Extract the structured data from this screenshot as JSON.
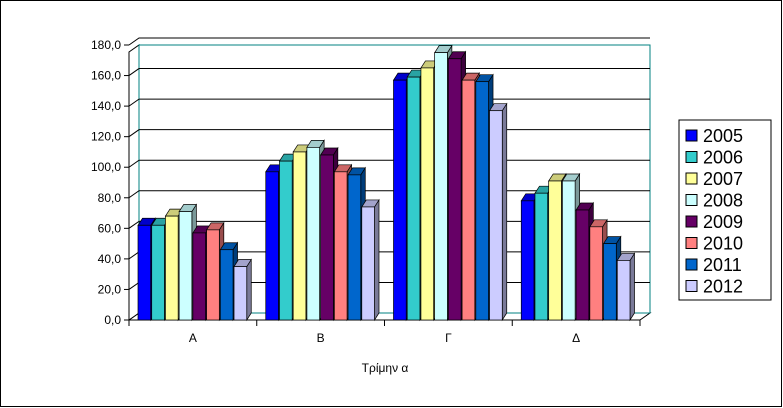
{
  "chart_data": {
    "type": "bar",
    "title": "",
    "xlabel": "Τρίμην α",
    "ylabel": "",
    "ylim": [
      0,
      180
    ],
    "y_ticks": [
      "0,0",
      "20,0",
      "40,0",
      "60,0",
      "80,0",
      "100,0",
      "120,0",
      "140,0",
      "160,0",
      "180,0"
    ],
    "categories": [
      "Α",
      "Β",
      "Γ",
      "Δ"
    ],
    "grid": true,
    "style": "3d-clustered-column",
    "legend_position": "right",
    "series": [
      {
        "name": "2005",
        "color": "#0000ff",
        "values": [
          62,
          97,
          157,
          78
        ]
      },
      {
        "name": "2006",
        "color": "#33cccc",
        "values": [
          62,
          104,
          159,
          83
        ]
      },
      {
        "name": "2007",
        "color": "#ffff99",
        "values": [
          68,
          110,
          165,
          91
        ]
      },
      {
        "name": "2008",
        "color": "#ccffff",
        "values": [
          71,
          113,
          175,
          91
        ]
      },
      {
        "name": "2009",
        "color": "#660066",
        "values": [
          57,
          108,
          171,
          72
        ]
      },
      {
        "name": "2010",
        "color": "#ff8080",
        "values": [
          59,
          97,
          157,
          61
        ]
      },
      {
        "name": "2011",
        "color": "#0066cc",
        "values": [
          46,
          95,
          156,
          50
        ]
      },
      {
        "name": "2012",
        "color": "#ccccff",
        "values": [
          35,
          74,
          137,
          39
        ]
      }
    ]
  }
}
